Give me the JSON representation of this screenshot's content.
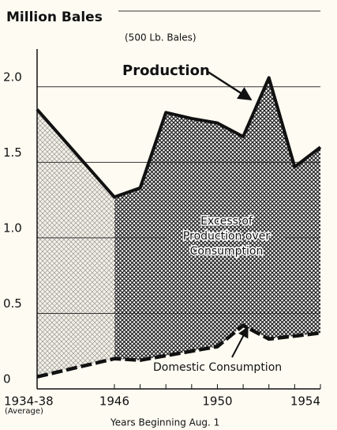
{
  "chart_data": {
    "type": "area",
    "y_label": "Million Bales",
    "subtitle": "(500 Lb. Bales)",
    "x_label": "Years Beginning Aug. 1",
    "x_note": "(Average)",
    "annotations": [
      "Production",
      [
        "Excess of",
        "Production over",
        "Consumption"
      ],
      "Domestic Consumption"
    ],
    "categories": [
      "1934-38",
      "1946",
      null,
      null,
      null,
      "1950",
      null,
      null,
      null,
      "1954"
    ],
    "series": [
      {
        "name": "Production",
        "color": "#111111",
        "values": [
          1.85,
          1.27,
          1.33,
          1.83,
          1.79,
          1.76,
          1.67,
          2.06,
          1.47,
          1.6
        ]
      },
      {
        "name": "Domestic Consumption",
        "color": "#111111",
        "values": [
          0.08,
          0.2,
          0.19,
          0.22,
          0.25,
          0.28,
          0.42,
          0.33,
          0.35,
          0.37
        ]
      }
    ],
    "ylim": [
      0,
      2.25
    ],
    "yticks": [
      0,
      0.5,
      {
        "value": 1,
        "label": "1.0"
      },
      1.5,
      {
        "value": 2,
        "label": "2.0"
      }
    ],
    "grid": true
  }
}
